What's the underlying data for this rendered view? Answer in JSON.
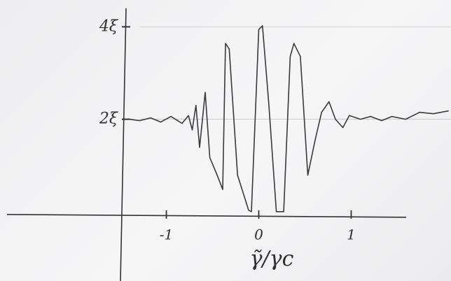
{
  "chart_data": {
    "type": "line",
    "xlabel": "γ̃/γc",
    "xlim": [
      -2.8,
      2.08
    ],
    "ylim": [
      -1.5,
      4.58
    ],
    "xticks": [
      -1,
      0,
      1
    ],
    "yticks": [
      {
        "value": 2,
        "label": "2ξ"
      },
      {
        "value": 4,
        "label": "4ξ"
      }
    ],
    "grid": true,
    "color": "#3a3a3a",
    "x": [
      -1.4,
      -1.29,
      -1.17,
      -1.06,
      -0.95,
      -0.83,
      -0.76,
      -0.72,
      -0.68,
      -0.64,
      -0.58,
      -0.53,
      -0.45,
      -0.39,
      -0.36,
      -0.32,
      -0.23,
      -0.11,
      -0.08,
      0,
      0.04,
      0.11,
      0.19,
      0.27,
      0.34,
      0.38,
      0.45,
      0.53,
      0.61,
      0.68,
      0.76,
      0.83,
      0.91,
      0.98,
      1.1,
      1.21,
      1.33,
      1.44,
      1.59,
      1.74,
      1.89,
      2.05
    ],
    "values": [
      2.0,
      1.97,
      2.03,
      1.94,
      2.06,
      1.91,
      2.08,
      1.77,
      2.3,
      1.39,
      2.58,
      1.17,
      0.79,
      0.48,
      3.64,
      3.52,
      0.79,
      0.03,
      0,
      3.94,
      4.02,
      2.3,
      0,
      0,
      3.36,
      3.64,
      3.36,
      0.79,
      1.55,
      2.15,
      2.38,
      2.0,
      1.82,
      2.08,
      2.0,
      2.06,
      1.97,
      2.06,
      2.0,
      2.15,
      2.12,
      2.18
    ]
  }
}
